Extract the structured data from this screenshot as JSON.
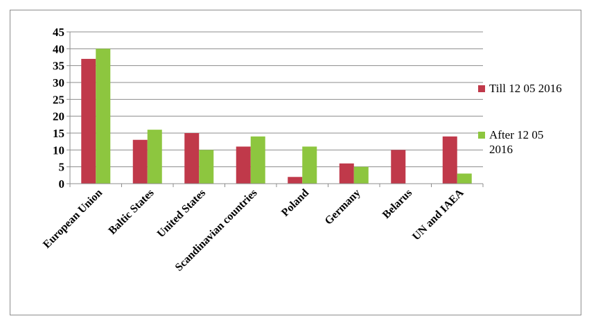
{
  "chart_data": {
    "type": "bar",
    "title": "",
    "xlabel": "",
    "ylabel": "",
    "ylim": [
      0,
      45
    ],
    "yticks": [
      0,
      5,
      10,
      15,
      20,
      25,
      30,
      35,
      40,
      45
    ],
    "grid": true,
    "legend_position": "right",
    "categories": [
      "European Union",
      "Baltic States",
      "United States",
      "Scandinavian countries",
      "Poland",
      "Germany",
      "Belarus",
      "UN and IAEA"
    ],
    "series": [
      {
        "name": "Till 12 05 2016",
        "color": "#c0394a",
        "values": [
          37,
          13,
          15,
          11,
          2,
          6,
          10,
          14
        ]
      },
      {
        "name": "After 12 05 2016",
        "color": "#8dc63f",
        "values": [
          40,
          16,
          10,
          14,
          11,
          5,
          0,
          3
        ]
      }
    ],
    "legend_lines": [
      [
        "Till 12 05 2016"
      ],
      [
        "After 12 05",
        "2016"
      ]
    ]
  }
}
